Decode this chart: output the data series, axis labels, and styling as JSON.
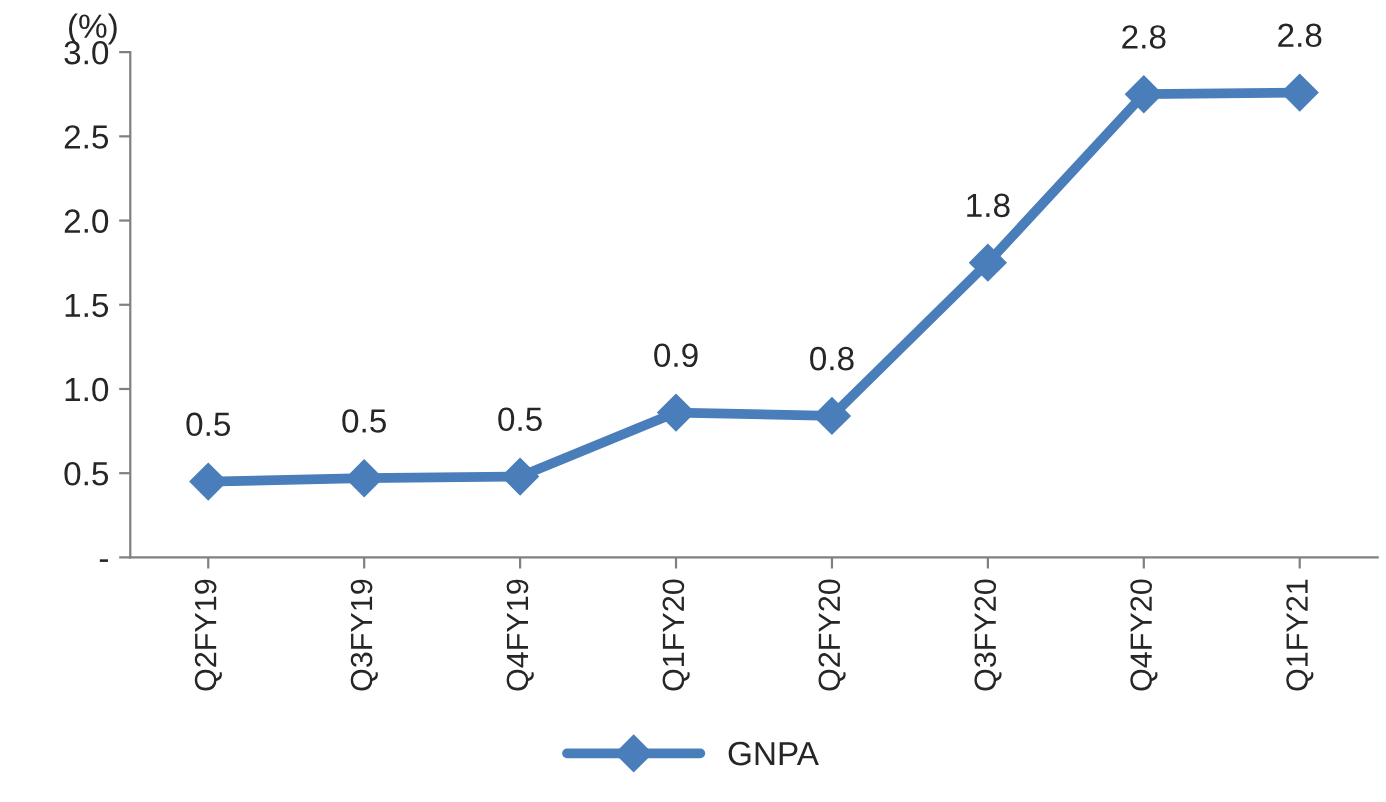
{
  "chart_data": {
    "type": "line",
    "ylabel": "(%)",
    "categories": [
      "Q2FY19",
      "Q3FY19",
      "Q4FY19",
      "Q1FY20",
      "Q2FY20",
      "Q3FY20",
      "Q4FY20",
      "Q1FY21"
    ],
    "series": [
      {
        "name": "GNPA",
        "color": "#4a7ebb",
        "values": [
          0.45,
          0.47,
          0.48,
          0.86,
          0.84,
          1.75,
          2.75,
          2.76
        ],
        "value_labels": [
          "0.5",
          "0.5",
          "0.5",
          "0.9",
          "0.8",
          "1.8",
          "2.8",
          "2.8"
        ]
      }
    ],
    "ylim": [
      0,
      3
    ],
    "yticks": [
      {
        "value": 0,
        "label": "-"
      },
      {
        "value": 0.5,
        "label": "0.5"
      },
      {
        "value": 1.0,
        "label": "1.0"
      },
      {
        "value": 1.5,
        "label": "1.5"
      },
      {
        "value": 2.0,
        "label": "2.0"
      },
      {
        "value": 2.5,
        "label": "2.5"
      },
      {
        "value": 3.0,
        "label": "3.0"
      }
    ],
    "grid": false,
    "legend": "bottom",
    "marker": "diamond",
    "line_style": "solid"
  }
}
